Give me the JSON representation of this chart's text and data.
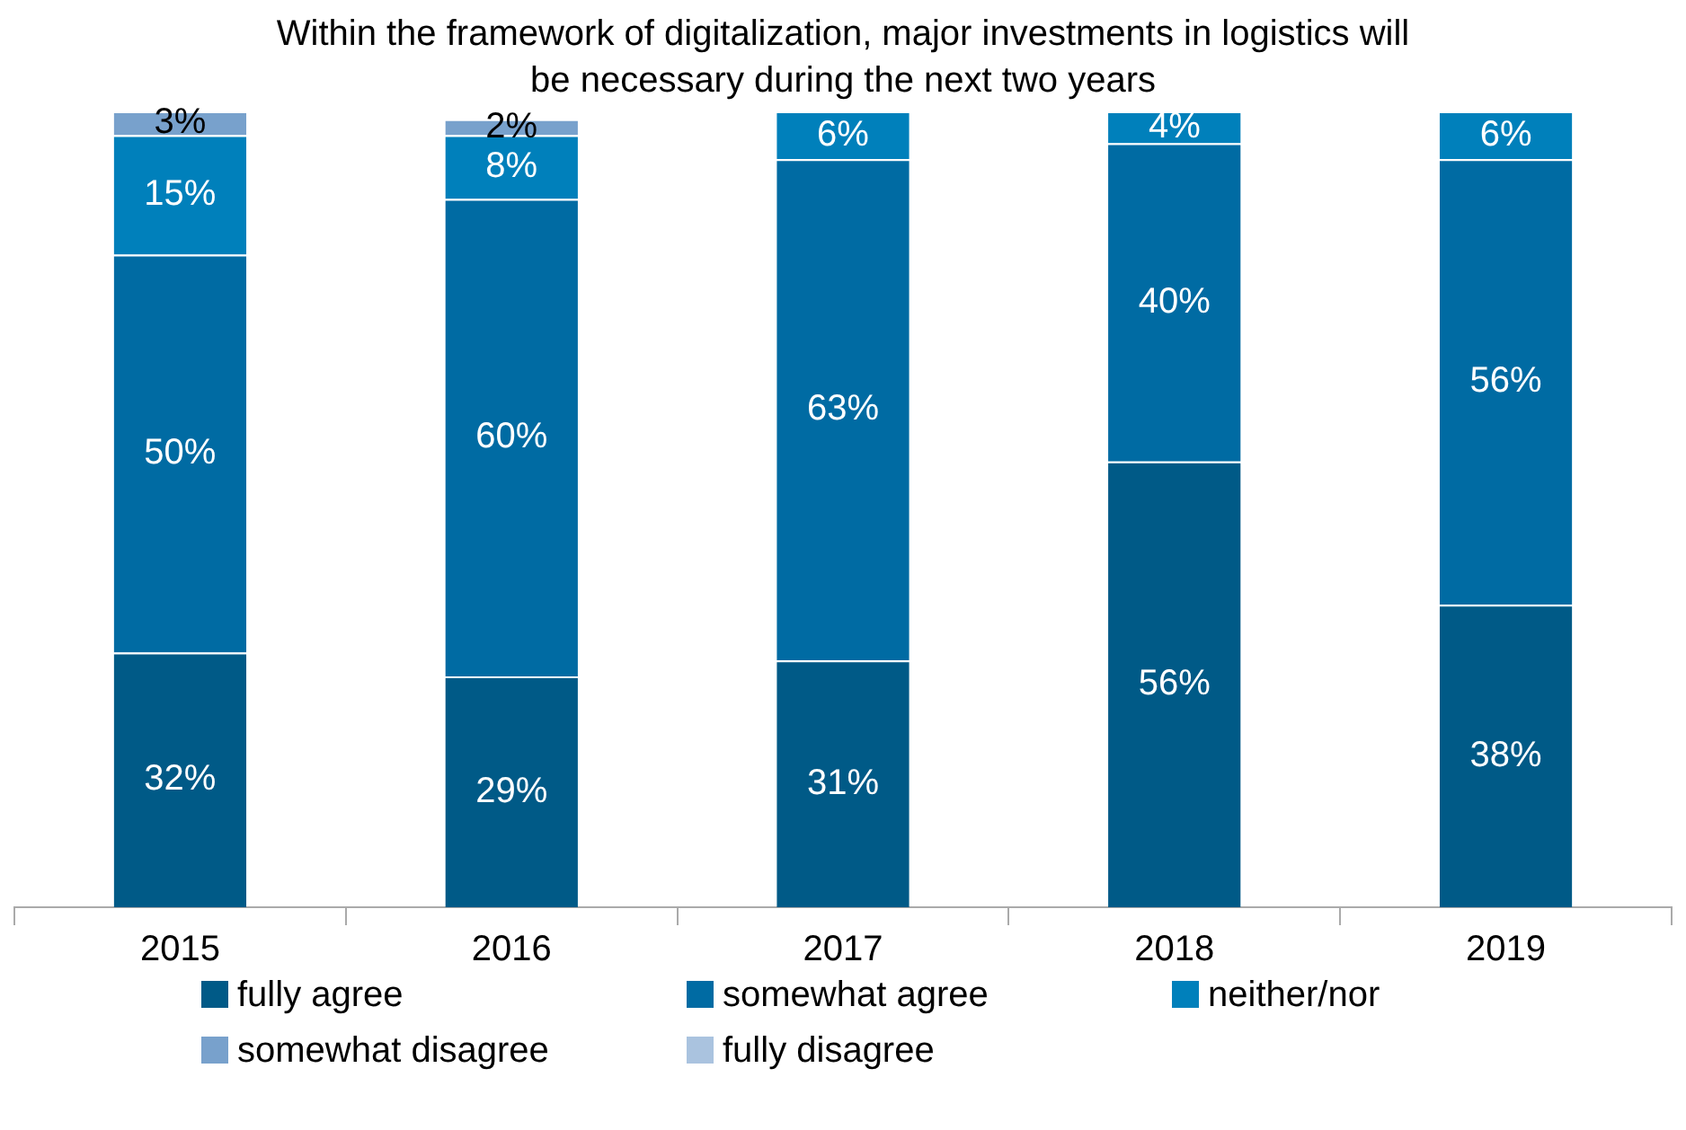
{
  "chart_data": {
    "type": "bar",
    "stacked": true,
    "title": "Within the framework of digitalization, major investments in logistics will be necessary during the next two years",
    "categories": [
      "2015",
      "2016",
      "2017",
      "2018",
      "2019"
    ],
    "series": [
      {
        "name": "fully agree",
        "color": "#005a87",
        "values": [
          32,
          29,
          31,
          56,
          38
        ],
        "value_labels": [
          "32%",
          "29%",
          "31%",
          "56%",
          "38%"
        ]
      },
      {
        "name": "somewhat agree",
        "color": "#006ba3",
        "values": [
          50,
          60,
          63,
          40,
          56
        ],
        "value_labels": [
          "50%",
          "60%",
          "63%",
          "40%",
          "56%"
        ]
      },
      {
        "name": "neither/nor",
        "color": "#0080bb",
        "values": [
          15,
          8,
          6,
          4,
          6
        ],
        "value_labels": [
          "15%",
          "8%",
          "6%",
          "4%",
          "6%"
        ]
      },
      {
        "name": "somewhat disagree",
        "color": "#78a1cc",
        "values": [
          3,
          2,
          null,
          null,
          null
        ],
        "value_labels": [
          "3%",
          "2%",
          null,
          null,
          null
        ]
      },
      {
        "name": "fully disagree",
        "color": "#aac3df",
        "values": [
          null,
          null,
          null,
          null,
          null
        ]
      }
    ],
    "tick_labels": "x",
    "legend": "bottom"
  }
}
